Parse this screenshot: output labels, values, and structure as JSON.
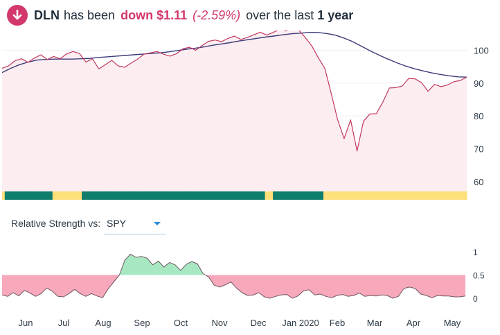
{
  "header": {
    "ticker": "DLN",
    "text_has_been": "has been",
    "direction_change": "down $1.11",
    "percent_change": "(-2.59%)",
    "text_over_the_last": "over the last",
    "period": "1 year",
    "icon": "arrow-down-circle-icon",
    "accent_color": "#d2386c"
  },
  "relative_strength": {
    "label": "Relative Strength vs:",
    "selected": "SPY",
    "dropdown_icon": "caret-down-icon"
  },
  "chart_data": [
    {
      "type": "line",
      "x_labels": [
        "Jun",
        "Jul",
        "Aug",
        "Sep",
        "Oct",
        "Nov",
        "Dec",
        "Jan 2020",
        "Feb",
        "Mar",
        "Apr",
        "May"
      ],
      "y_ticks": [
        100,
        90,
        80,
        70,
        60
      ],
      "ylim": [
        57,
        106
      ],
      "series": [
        {
          "role": "price",
          "color": "#c2395e",
          "values": [
            94.5,
            95.2,
            96.8,
            97.4,
            96.3,
            97.6,
            98.6,
            97.2,
            98.1,
            97.4,
            98.9,
            99.6,
            99.0,
            96.4,
            97.4,
            94.3,
            95.6,
            96.9,
            95.2,
            94.8,
            96.1,
            97.3,
            98.8,
            99.2,
            99.6,
            98.8,
            98.2,
            98.9,
            100.4,
            100.9,
            100.0,
            101.4,
            102.7,
            103.1,
            102.6,
            103.6,
            104.3,
            103.3,
            103.9,
            104.7,
            105.5,
            104.6,
            105.4,
            106.4,
            105.9,
            106.7,
            106.1,
            103.8,
            101.3,
            97.7,
            94.5,
            86.8,
            78.8,
            73.1,
            78.8,
            69.3,
            78.4,
            80.6,
            80.7,
            84.2,
            88.5,
            88.6,
            89.1,
            91.4,
            91.3,
            90.1,
            87.5,
            89.6,
            88.9,
            89.4,
            90.4,
            90.8,
            91.8
          ]
        },
        {
          "role": "moving-average",
          "color": "#3b3a7a",
          "values": [
            93.2,
            94.5,
            95.6,
            96.4,
            97.0,
            97.2,
            97.3,
            97.3,
            97.3,
            97.4,
            97.5,
            97.8,
            98.0,
            98.2,
            98.4,
            98.6,
            98.8,
            99.0,
            99.2,
            99.5,
            99.9,
            100.3,
            100.6,
            101.0,
            101.5,
            101.9,
            102.3,
            102.8,
            103.2,
            103.6,
            104.0,
            104.3,
            104.7,
            105.0,
            105.2,
            105.4,
            105.4,
            105.1,
            104.6,
            103.7,
            102.6,
            101.2,
            99.8,
            98.5,
            97.3,
            96.2,
            95.2,
            94.4,
            93.7,
            93.1,
            92.6,
            92.2,
            91.9,
            91.8
          ]
        }
      ],
      "signal_band": [
        "yellow",
        "teal",
        "teal",
        "teal",
        "teal",
        "teal",
        "teal",
        "teal",
        "teal",
        "teal",
        "teal",
        "teal",
        "teal",
        "teal",
        "teal",
        "teal",
        "teal",
        "teal",
        "teal",
        "yellow",
        "yellow",
        "yellow",
        "yellow",
        "yellow",
        "yellow",
        "yellow",
        "yellow",
        "yellow",
        "yellow",
        "yellow",
        "teal",
        "teal",
        "teal",
        "teal",
        "teal",
        "teal",
        "teal",
        "teal",
        "teal",
        "teal",
        "teal",
        "teal",
        "teal",
        "teal",
        "teal",
        "teal",
        "teal",
        "teal",
        "teal",
        "teal",
        "teal",
        "teal",
        "teal",
        "teal",
        "teal",
        "teal",
        "teal",
        "teal",
        "teal",
        "teal",
        "teal",
        "teal",
        "teal",
        "teal",
        "teal",
        "teal",
        "teal",
        "teal",
        "teal",
        "teal",
        "teal",
        "teal",
        "teal",
        "teal",
        "teal",
        "teal",
        "teal",
        "teal",
        "teal",
        "teal",
        "teal",
        "teal",
        "teal",
        "teal",
        "teal",
        "teal",
        "teal",
        "teal",
        "teal",
        "teal",
        "teal",
        "teal",
        "teal",
        "teal",
        "teal",
        "teal",
        "teal",
        "teal",
        "teal",
        "yellow",
        "yellow",
        "yellow",
        "teal",
        "teal",
        "teal",
        "teal",
        "teal",
        "teal",
        "teal",
        "teal",
        "teal",
        "teal",
        "teal",
        "teal",
        "teal",
        "teal",
        "teal",
        "teal",
        "teal",
        "teal",
        "teal",
        "yellow",
        "yellow",
        "yellow",
        "yellow",
        "yellow",
        "yellow",
        "yellow",
        "yellow",
        "yellow",
        "yellow",
        "yellow",
        "yellow",
        "yellow",
        "yellow",
        "yellow",
        "yellow",
        "yellow",
        "yellow",
        "yellow",
        "yellow",
        "yellow",
        "yellow",
        "yellow",
        "yellow",
        "yellow",
        "yellow",
        "yellow",
        "yellow",
        "yellow",
        "yellow",
        "yellow",
        "yellow",
        "yellow",
        "yellow",
        "yellow",
        "yellow",
        "yellow",
        "yellow",
        "yellow",
        "yellow",
        "yellow",
        "yellow",
        "yellow",
        "yellow",
        "yellow",
        "yellow",
        "yellow",
        "yellow",
        "yellow",
        "yellow",
        "yellow",
        "yellow",
        "yellow",
        "yellow"
      ],
      "band_colors": {
        "teal": "#0f7d6c",
        "yellow": "#fde07a"
      },
      "fill_color": "#fcedf1",
      "grid": true
    },
    {
      "type": "area",
      "y_ticks": [
        1,
        0.5,
        0
      ],
      "ylim": [
        0,
        1
      ],
      "threshold": 0.5,
      "above_color": "#a7e8c2",
      "below_color": "#f7a8bb",
      "line_color": "#6e5660",
      "values": [
        0.07,
        0.04,
        0.12,
        0.05,
        0.17,
        0.11,
        0.04,
        0.1,
        0.22,
        0.15,
        0.04,
        0.03,
        0.1,
        0.19,
        0.1,
        0.04,
        0.1,
        0.05,
        0.01,
        0.2,
        0.35,
        0.5,
        0.82,
        0.95,
        0.88,
        0.9,
        0.86,
        0.72,
        0.8,
        0.67,
        0.77,
        0.72,
        0.6,
        0.73,
        0.79,
        0.74,
        0.53,
        0.46,
        0.28,
        0.24,
        0.29,
        0.35,
        0.22,
        0.12,
        0.06,
        0.07,
        0.12,
        0.03,
        0.0,
        0.04,
        0.07,
        0.08,
        0.0,
        0.05,
        0.16,
        0.18,
        0.07,
        0.09,
        0.04,
        0.01,
        0.06,
        0.08,
        0.04,
        0.06,
        0.11,
        0.04,
        0.06,
        0.05,
        0.07,
        0.06,
        0.0,
        0.04,
        0.21,
        0.24,
        0.21,
        0.09,
        0.06,
        0.01,
        0.06,
        0.05,
        0.05,
        0.03,
        0.03,
        0.05
      ]
    }
  ]
}
